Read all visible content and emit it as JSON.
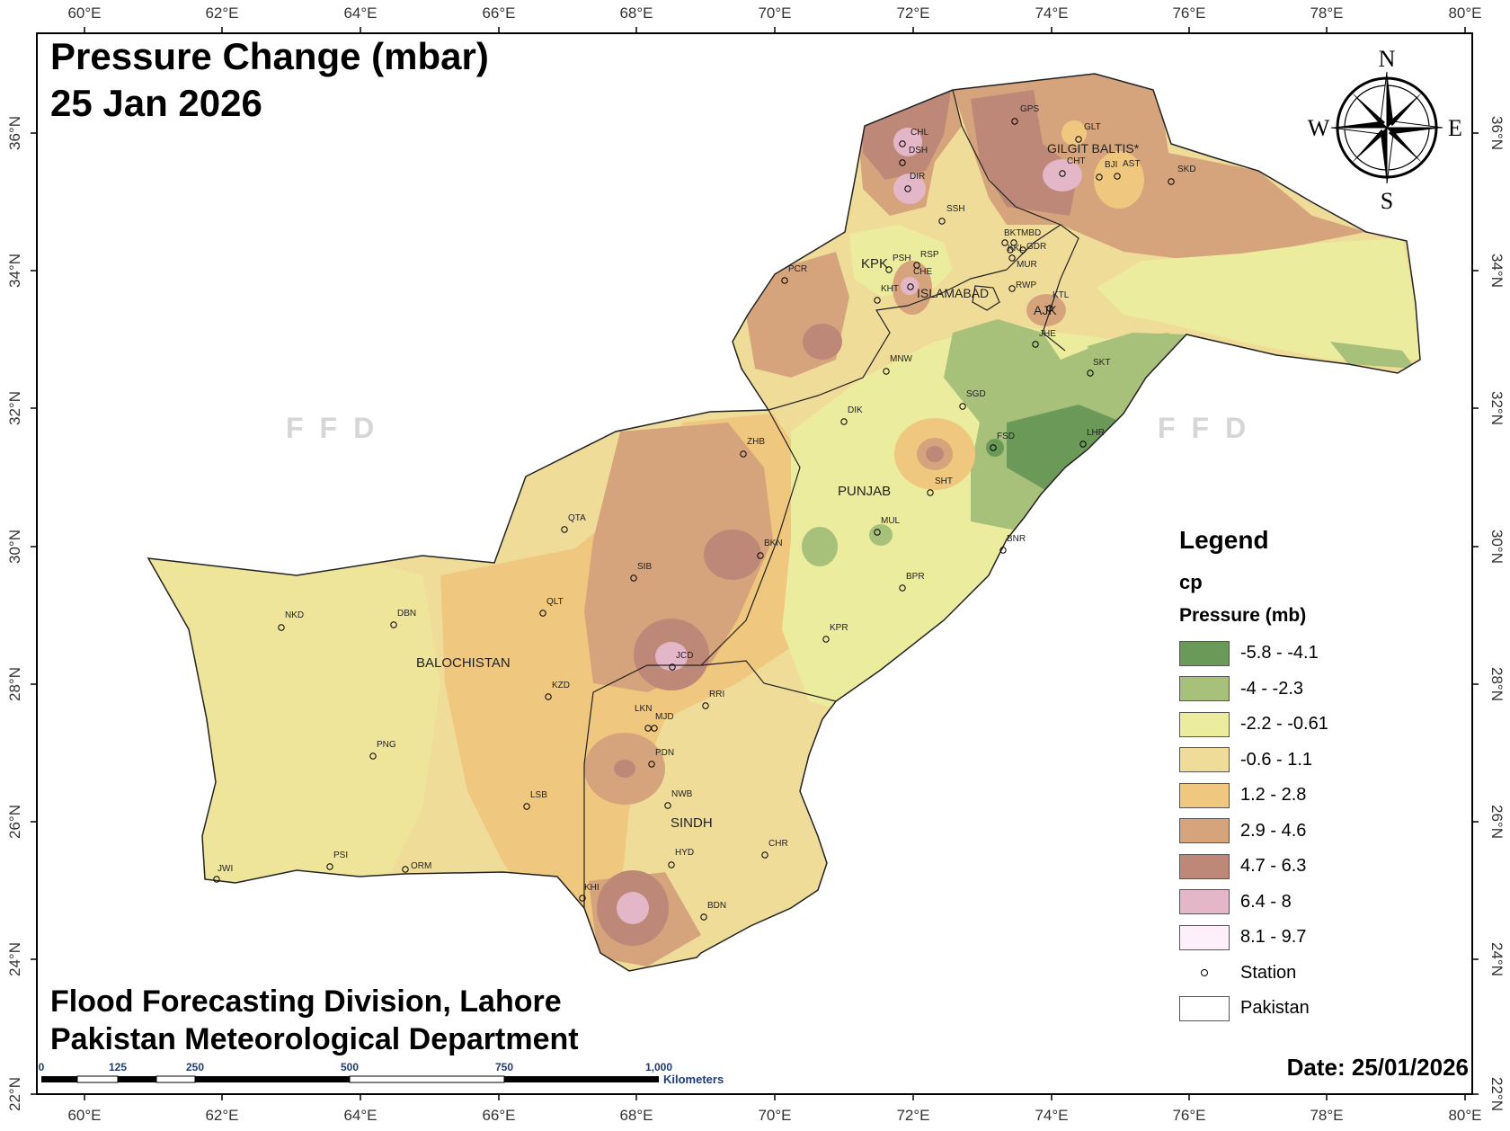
{
  "title": {
    "line1": "Pressure Change (mbar)",
    "line2": "25 Jan 2026"
  },
  "footer": {
    "line1": "Flood Forecasting Division, Lahore",
    "line2": "Pakistan Meteorological Department",
    "date": "Date: 25/01/2026"
  },
  "watermark": "FFD",
  "graticule": {
    "lon_labels": [
      "60°E",
      "62°E",
      "64°E",
      "66°E",
      "68°E",
      "70°E",
      "72°E",
      "74°E",
      "76°E",
      "78°E",
      "80°E"
    ],
    "lat_labels": [
      "22°N",
      "24°N",
      "26°N",
      "28°N",
      "30°N",
      "32°N",
      "34°N",
      "36°N"
    ]
  },
  "compass": {
    "n": "N",
    "s": "S",
    "e": "E",
    "w": "W"
  },
  "scalebar": {
    "ticks": [
      "0",
      "125",
      "250",
      "500",
      "750",
      "1,000"
    ],
    "unit": "Kilometers"
  },
  "legend": {
    "title": "Legend",
    "layer": "cp",
    "field": "Pressure (mb)",
    "classes": [
      {
        "label": "-5.8 - -4.1",
        "color": "#6b9a58"
      },
      {
        "label": "-4 - -2.3",
        "color": "#a7c07a"
      },
      {
        "label": "-2.2 - -0.61",
        "color": "#ecec9e"
      },
      {
        "label": "-0.6 - 1.1",
        "color": "#efdc98"
      },
      {
        "label": "1.2 - 2.8",
        "color": "#efc77e"
      },
      {
        "label": "2.9 - 4.6",
        "color": "#d6a47c"
      },
      {
        "label": "4.7 - 6.3",
        "color": "#bd8878"
      },
      {
        "label": "6.4 - 8",
        "color": "#e3b7c7"
      },
      {
        "label": "8.1 - 9.7",
        "color": "#fdf0fb"
      }
    ],
    "station_label": "Station",
    "boundary_label": "Pakistan"
  },
  "regions": [
    "GILGIT BALTIS*",
    "KPK",
    "ISLAMABAD",
    "AJK",
    "PUNJAB",
    "BALOCHISTAN",
    "SINDH"
  ],
  "stations": [
    "CHL",
    "DSH",
    "DIR",
    "GPS",
    "GLT",
    "CHT",
    "BJI",
    "AST",
    "SKD",
    "SSH",
    "BKT",
    "MBD",
    "KKL",
    "GDR",
    "MUR",
    "PSH",
    "RSP",
    "CHE",
    "KHT",
    "RWP",
    "KTL",
    "PCR",
    "JHE",
    "MNW",
    "SKT",
    "SGD",
    "DIK",
    "FSD",
    "LHR",
    "ZHB",
    "SHT",
    "QTA",
    "MUL",
    "BKN",
    "BNR",
    "SIB",
    "BPR",
    "QLT",
    "NKD",
    "DBN",
    "KPR",
    "JCD",
    "KZD",
    "RRI",
    "LKN",
    "MJD",
    "PDN",
    "PNG",
    "NWB",
    "LSB",
    "CHR",
    "HYD",
    "PSI",
    "ORM",
    "JWI",
    "KHI",
    "BDN"
  ]
}
